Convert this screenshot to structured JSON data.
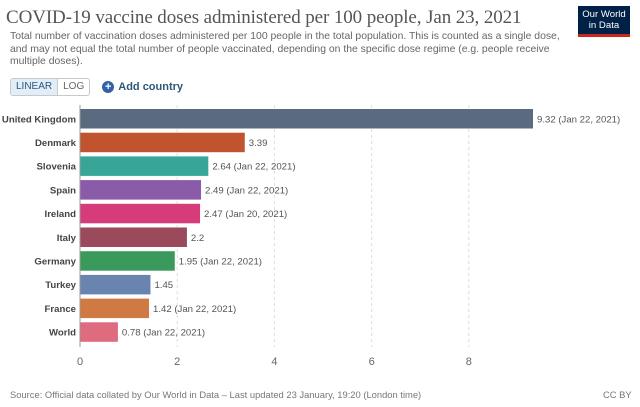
{
  "header": {
    "title": "COVID-19 vaccine doses administered per 100 people, Jan 23, 2021",
    "subtitle": "Total number of vaccination doses administered per 100 people in the total population. This is counted as a single dose, and may not equal the total number of people vaccinated, depending on the specific dose regime (e.g. people receive multiple doses).",
    "logo_line1": "Our World",
    "logo_line2": "in Data"
  },
  "controls": {
    "linear_label": "LINEAR",
    "log_label": "LOG",
    "add_country_label": "Add country"
  },
  "footer": {
    "source": "Source: Official data collated by Our World in Data – Last updated 23 January, 19:20 (London time)",
    "license": "CC BY"
  },
  "chart_data": {
    "type": "bar",
    "orientation": "horizontal",
    "categories": [
      "United Kingdom",
      "Denmark",
      "Slovenia",
      "Spain",
      "Ireland",
      "Italy",
      "Germany",
      "Turkey",
      "France",
      "World"
    ],
    "values": [
      9.32,
      3.39,
      2.64,
      2.49,
      2.47,
      2.2,
      1.95,
      1.45,
      1.42,
      0.78
    ],
    "value_labels": [
      "9.32 (Jan 22, 2021)",
      "3.39",
      "2.64 (Jan 22, 2021)",
      "2.49 (Jan 22, 2021)",
      "2.47 (Jan 20, 2021)",
      "2.2",
      "1.95 (Jan 22, 2021)",
      "1.45",
      "1.42 (Jan 22, 2021)",
      "0.78 (Jan 22, 2021)"
    ],
    "colors": [
      "#5b6b7f",
      "#c0542f",
      "#37a598",
      "#8a5ba8",
      "#d63c7a",
      "#9a4a5a",
      "#3a9a5c",
      "#6a84b0",
      "#d07a43",
      "#de6b7e"
    ],
    "xlim": [
      0,
      9.32
    ],
    "xticks": [
      0,
      2,
      4,
      6,
      8
    ],
    "grid": true,
    "xlabel": "",
    "ylabel": ""
  }
}
